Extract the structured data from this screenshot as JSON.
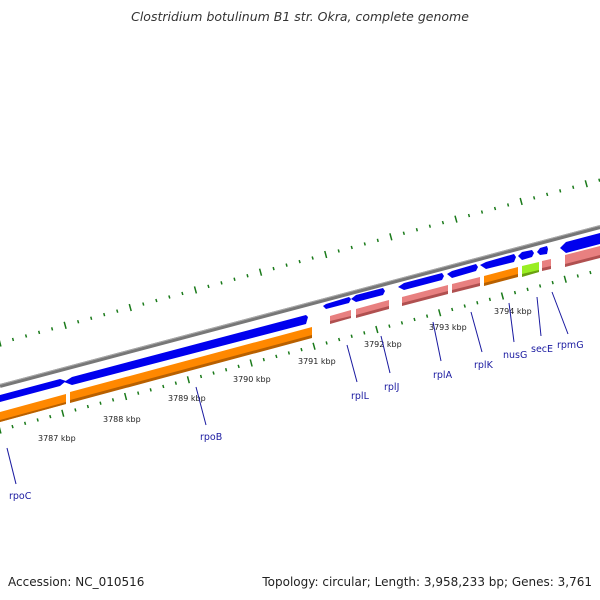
{
  "title": "Clostridium botulinum B1 str. Okra, complete genome",
  "accession": "Accession: NC_010516",
  "summary": "Topology: circular; Length: 3,958,233 bp; Genes: 3,761",
  "colors": {
    "backbone": "#808080",
    "forward_cds": "#0000ee",
    "reverse_cds": "#ff8800",
    "rrna_rna": "#e88080",
    "highlight": "#99ee22",
    "ticks": "#1a7a1a",
    "gene_label": "#1a1aa0"
  },
  "scale_ticks": [
    "3787 kbp",
    "3788 kbp",
    "3789 kbp",
    "3790 kbp",
    "3791 kbp",
    "3792 kbp",
    "3793 kbp",
    "3794 kbp"
  ],
  "genes": [
    "rpoC",
    "rpoB",
    "rplL",
    "rplJ",
    "rplA",
    "rplK",
    "nusG",
    "secE",
    "rpmG"
  ]
}
